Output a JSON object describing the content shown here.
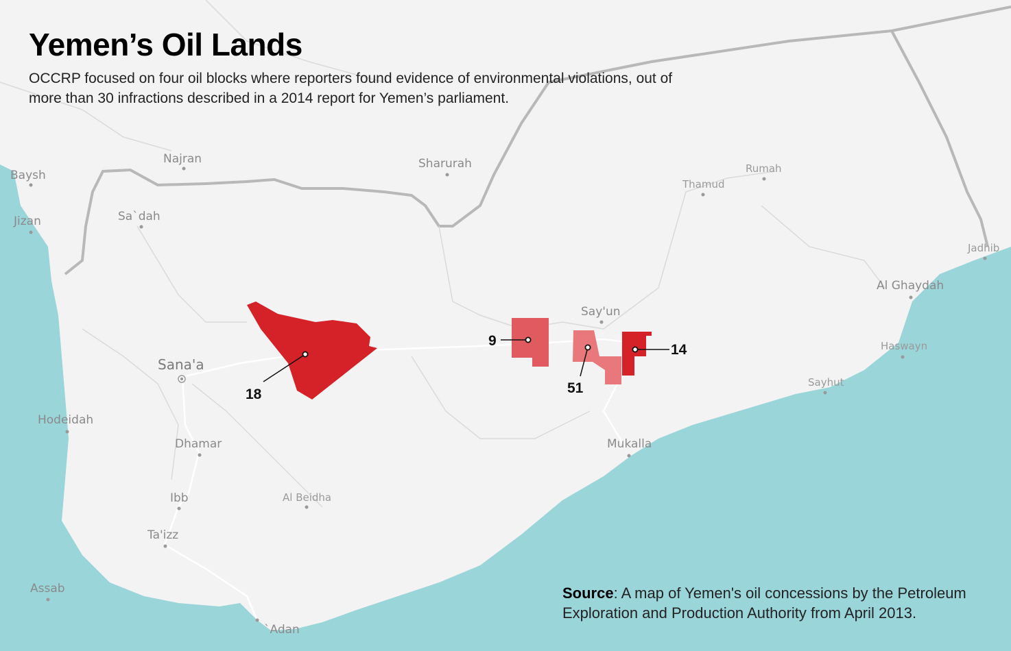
{
  "header": {
    "title": "Yemen’s Oil Lands",
    "subtitle": "OCCRP focused on four oil blocks where reporters found evidence of environmental violations, out of more than 30 infractions described in a 2014 report for Yemen’s parliament."
  },
  "source": {
    "label": "Source",
    "text": ": A map of Yemen's oil concessions by the Petroleum Exploration and Production Authority from April 2013."
  },
  "colors": {
    "sea": "#9ad5d9",
    "land": "#f3f3f3",
    "border": "#b8b8b8",
    "block_dark": "#d42228",
    "block_medium": "#e05a5f",
    "block_light": "#e8787c"
  },
  "places": [
    {
      "name": "Najran"
    },
    {
      "name": "Sharurah"
    },
    {
      "name": "Baysh"
    },
    {
      "name": "Jizan"
    },
    {
      "name": "Sa`dah"
    },
    {
      "name": "Rumah"
    },
    {
      "name": "Thamud"
    },
    {
      "name": "Jadhib"
    },
    {
      "name": "Al Ghaydah"
    },
    {
      "name": "Say'un"
    },
    {
      "name": "Haswayn"
    },
    {
      "name": "Sayhut"
    },
    {
      "name": "Sana'a"
    },
    {
      "name": "Hodeidah"
    },
    {
      "name": "Dhamar"
    },
    {
      "name": "Mukalla"
    },
    {
      "name": "Al Beidha"
    },
    {
      "name": "Ibb"
    },
    {
      "name": "Ta'izz"
    },
    {
      "name": "Assab"
    },
    {
      "name": "`Adan"
    }
  ],
  "blocks": [
    {
      "id": "18",
      "label": "18",
      "color": "#d42228"
    },
    {
      "id": "9",
      "label": "9",
      "color": "#e05a5f"
    },
    {
      "id": "51",
      "label": "51",
      "color": "#e8787c"
    },
    {
      "id": "14",
      "label": "14",
      "color": "#d42228"
    }
  ]
}
